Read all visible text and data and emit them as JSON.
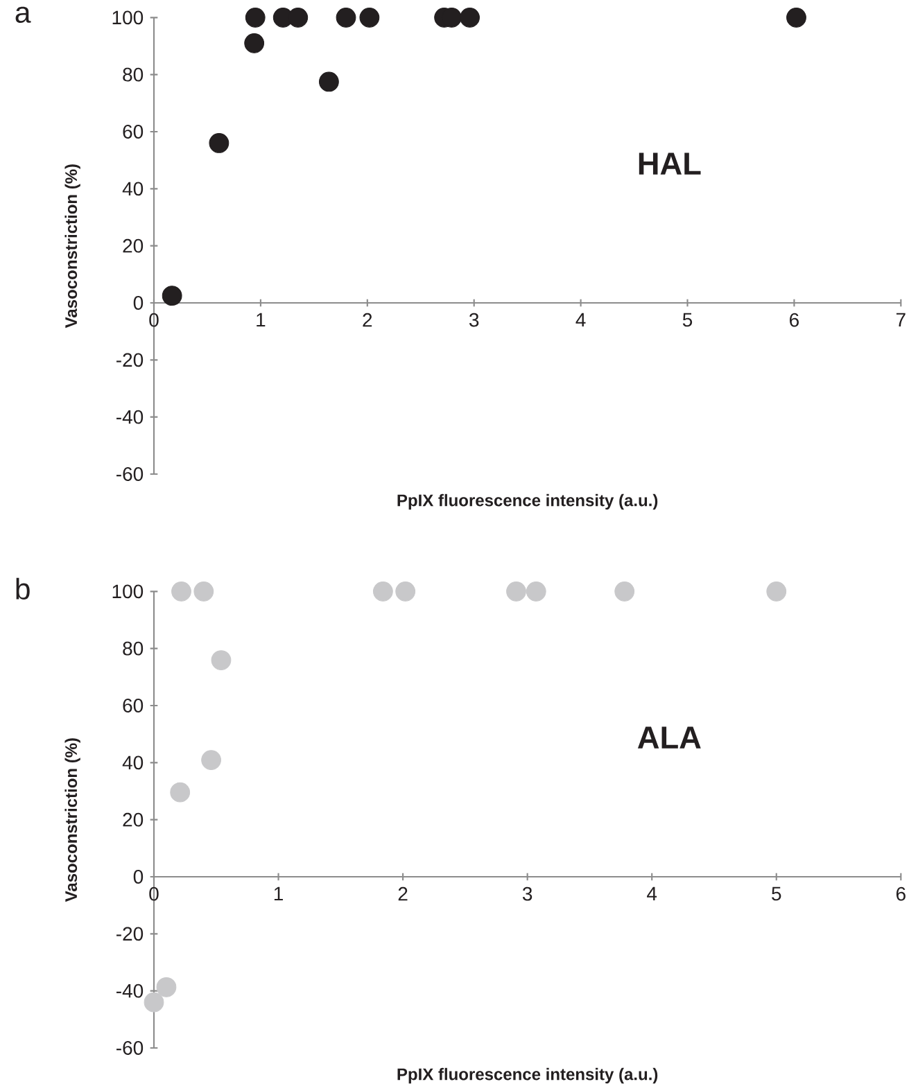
{
  "chart_data": [
    {
      "type": "scatter",
      "title": "a",
      "xlabel": "PpIX fluorescence intensity (a.u.)",
      "ylabel": "Vasoconstriction (%)",
      "annotations": [
        "HAL"
      ],
      "marker": "circle",
      "color": "#231f20",
      "x": [
        0.17,
        0.61,
        0.94,
        0.95,
        1.21,
        1.35,
        1.64,
        1.8,
        2.02,
        2.72,
        2.79,
        2.96,
        6.02
      ],
      "values": [
        2.5,
        56,
        91,
        100,
        100,
        100,
        77.5,
        100,
        100,
        100,
        100,
        100,
        100
      ],
      "xlim": [
        0,
        7
      ],
      "ylim": [
        -60,
        100
      ],
      "xticks": [
        0,
        1,
        2,
        3,
        4,
        5,
        6,
        7
      ],
      "yticks": [
        -60,
        -40,
        -20,
        0,
        20,
        40,
        60,
        80,
        100
      ]
    },
    {
      "type": "scatter",
      "title": "b",
      "xlabel": "PpIX fluorescence intensity (a.u.)",
      "ylabel": "Vasoconstriction (%)",
      "annotations": [
        "ALA"
      ],
      "marker": "circle",
      "color": "#c8c8ca",
      "x": [
        0.0,
        0.1,
        0.21,
        0.22,
        0.4,
        0.46,
        0.54,
        1.84,
        2.02,
        2.91,
        3.07,
        3.78,
        5.0
      ],
      "values": [
        -44,
        -38.7,
        29.6,
        100,
        100,
        40.9,
        75.9,
        100,
        100,
        100,
        100,
        100,
        100
      ],
      "xlim": [
        0,
        6
      ],
      "ylim": [
        -60,
        100
      ],
      "xticks": [
        0,
        1,
        2,
        3,
        4,
        5,
        6
      ],
      "yticks": [
        -60,
        -40,
        -20,
        0,
        20,
        40,
        60,
        80,
        100
      ]
    }
  ]
}
